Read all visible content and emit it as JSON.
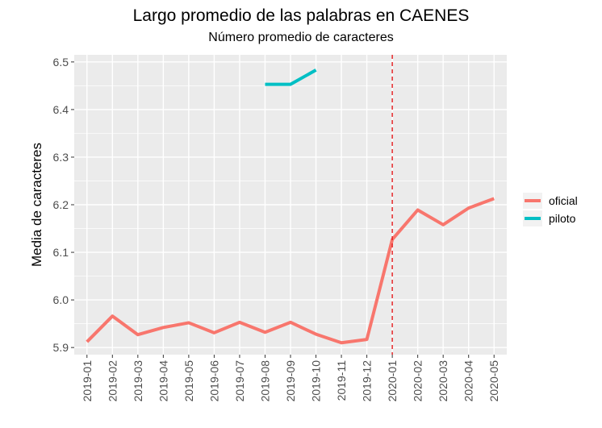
{
  "chart_data": {
    "type": "line",
    "title": "Largo promedio de las palabras en CAENES",
    "subtitle": "Número promedio de caracteres",
    "xlabel": "",
    "ylabel": "Media de caracteres",
    "x": [
      "2019-01",
      "2019-02",
      "2019-03",
      "2019-04",
      "2019-05",
      "2019-06",
      "2019-07",
      "2019-08",
      "2019-09",
      "2019-10",
      "2019-11",
      "2019-12",
      "2020-01",
      "2020-02",
      "2020-03",
      "2020-04",
      "2020-05"
    ],
    "ylim": [
      5.885,
      6.515
    ],
    "yticks": [
      5.9,
      6.0,
      6.1,
      6.2,
      6.3,
      6.4,
      6.5
    ],
    "yticklabels": [
      "5.9",
      "6.0",
      "6.1",
      "6.2",
      "6.3",
      "6.4",
      "6.5"
    ],
    "series": [
      {
        "name": "oficial",
        "color": "#f8766d",
        "values": [
          5.912,
          5.966,
          5.927,
          5.942,
          5.952,
          5.931,
          5.953,
          5.932,
          5.953,
          5.928,
          5.91,
          5.917,
          6.127,
          6.189,
          6.158,
          6.193,
          6.213
        ]
      },
      {
        "name": "piloto",
        "color": "#00bfc4",
        "values": [
          null,
          null,
          null,
          null,
          null,
          null,
          null,
          6.453,
          6.453,
          6.483,
          null,
          null,
          null,
          null,
          null,
          null,
          null
        ]
      }
    ],
    "vline": {
      "x": "2020-01",
      "color": "#e41a1c",
      "style": "dashed"
    },
    "grid": true,
    "legend_position": "right"
  }
}
